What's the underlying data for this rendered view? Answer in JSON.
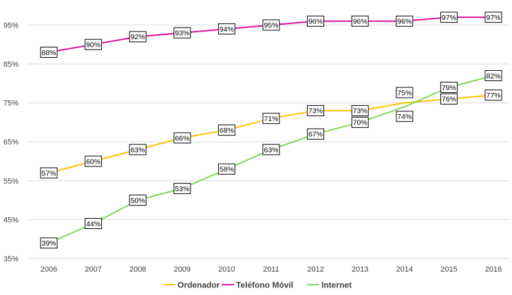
{
  "chart_data": {
    "type": "line",
    "categories": [
      "2006",
      "2007",
      "2008",
      "2009",
      "2010",
      "2011",
      "2012",
      "2013",
      "2014",
      "2015",
      "2016"
    ],
    "series": [
      {
        "name": "Ordenador",
        "color": "#FFC000",
        "values": [
          57,
          60,
          63,
          66,
          68,
          71,
          73,
          73,
          75,
          76,
          77
        ],
        "labels": [
          "57%",
          "60%",
          "63%",
          "66%",
          "68%",
          "71%",
          "73%",
          "73%",
          "75%",
          "76%",
          "77%"
        ]
      },
      {
        "name": "Teléfono Móvil",
        "color": "#E0119A",
        "values": [
          88,
          90,
          92,
          93,
          94,
          95,
          96,
          96,
          96,
          97,
          97
        ],
        "labels": [
          "88%",
          "90%",
          "92%",
          "93%",
          "94%",
          "95%",
          "96%",
          "96%",
          "96%",
          "97%",
          "97%"
        ]
      },
      {
        "name": "Internet",
        "color": "#7FD957",
        "values": [
          39,
          44,
          50,
          53,
          58,
          63,
          67,
          70,
          74,
          79,
          82
        ],
        "labels": [
          "39%",
          "44%",
          "50%",
          "53%",
          "58%",
          "63%",
          "67%",
          "70%",
          "74%",
          "79%",
          "82%"
        ]
      }
    ],
    "yticks": [
      35,
      45,
      55,
      65,
      75,
      85,
      95
    ],
    "ytick_labels": [
      "35%",
      "45%",
      "55%",
      "65%",
      "75%",
      "85%",
      "95%"
    ],
    "ylim": [
      35,
      100
    ],
    "grid": true,
    "legend_position": "bottom-center",
    "gridline_color": "#D9D9D9"
  }
}
